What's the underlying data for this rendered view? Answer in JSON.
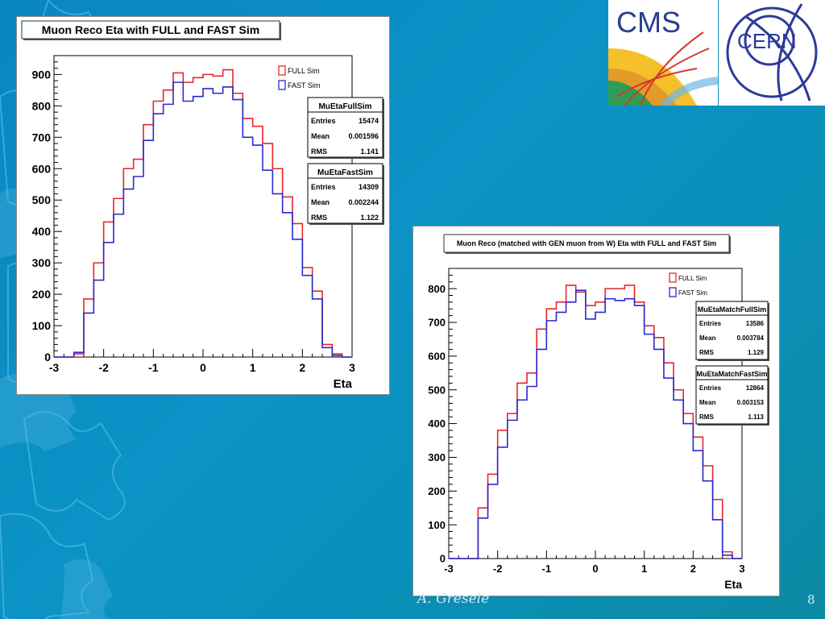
{
  "logos": {
    "cms": "CMS",
    "cern": "CERN"
  },
  "footer": {
    "author": "A. Gresele",
    "page": "8"
  },
  "chart_data": [
    {
      "type": "histogram",
      "title": "Muon Reco Eta with FULL and FAST Sim",
      "xlabel": "Eta",
      "ylabel": "",
      "xlim": [
        -3,
        3
      ],
      "ylim": [
        0,
        960
      ],
      "xticks": [
        -3,
        -2,
        -1,
        0,
        1,
        2,
        3
      ],
      "yticks": [
        0,
        100,
        200,
        300,
        400,
        500,
        600,
        700,
        800,
        900
      ],
      "bin_width": 0.2,
      "bin_start": -3,
      "legend_position": "top-right",
      "series": [
        {
          "name": "FULL Sim",
          "color": "#e8262b",
          "values": [
            0,
            0,
            10,
            185,
            300,
            430,
            505,
            600,
            630,
            740,
            815,
            850,
            905,
            875,
            890,
            900,
            895,
            915,
            840,
            760,
            735,
            680,
            600,
            510,
            425,
            285,
            210,
            40,
            10,
            0
          ]
        },
        {
          "name": "FAST Sim",
          "color": "#2a2ad0",
          "values": [
            0,
            0,
            15,
            140,
            245,
            365,
            455,
            535,
            575,
            690,
            775,
            805,
            875,
            815,
            830,
            855,
            840,
            860,
            820,
            700,
            675,
            595,
            520,
            460,
            375,
            260,
            185,
            30,
            5,
            0
          ]
        }
      ],
      "stats": [
        {
          "title": "MuEtaFullSim",
          "rows": [
            {
              "label": "Entries",
              "value": "15474"
            },
            {
              "label": "Mean",
              "value": "0.001596"
            },
            {
              "label": "RMS",
              "value": "1.141"
            }
          ]
        },
        {
          "title": "MuEtaFastSim",
          "rows": [
            {
              "label": "Entries",
              "value": "14309"
            },
            {
              "label": "Mean",
              "value": "0.002244"
            },
            {
              "label": "RMS",
              "value": "1.122"
            }
          ]
        }
      ]
    },
    {
      "type": "histogram",
      "title": "Muon Reco (matched with GEN muon from W) Eta with FULL and FAST Sim",
      "xlabel": "Eta",
      "ylabel": "",
      "xlim": [
        -3,
        3
      ],
      "ylim": [
        0,
        860
      ],
      "xticks": [
        -3,
        -2,
        -1,
        0,
        1,
        2,
        3
      ],
      "yticks": [
        0,
        100,
        200,
        300,
        400,
        500,
        600,
        700,
        800
      ],
      "bin_width": 0.2,
      "bin_start": -3,
      "legend_position": "top-right",
      "series": [
        {
          "name": "FULL Sim",
          "color": "#e8262b",
          "values": [
            0,
            0,
            0,
            150,
            250,
            380,
            430,
            520,
            550,
            680,
            740,
            760,
            810,
            790,
            750,
            760,
            800,
            800,
            810,
            760,
            690,
            655,
            580,
            500,
            430,
            360,
            275,
            175,
            20,
            0
          ]
        },
        {
          "name": "FAST Sim",
          "color": "#2a2ad0",
          "values": [
            0,
            0,
            0,
            120,
            220,
            330,
            410,
            470,
            510,
            620,
            705,
            730,
            760,
            795,
            710,
            730,
            770,
            765,
            770,
            750,
            665,
            620,
            535,
            470,
            400,
            320,
            230,
            115,
            10,
            0
          ]
        }
      ],
      "stats": [
        {
          "title": "MuEtaMatchFullSim",
          "rows": [
            {
              "label": "Entries",
              "value": "13586"
            },
            {
              "label": "Mean",
              "value": "0.003784"
            },
            {
              "label": "RMS",
              "value": "1.129"
            }
          ]
        },
        {
          "title": "MuEtaMatchFastSim",
          "rows": [
            {
              "label": "Entries",
              "value": "12864"
            },
            {
              "label": "Mean",
              "value": "0.003153"
            },
            {
              "label": "RMS",
              "value": "1.113"
            }
          ]
        }
      ]
    }
  ]
}
